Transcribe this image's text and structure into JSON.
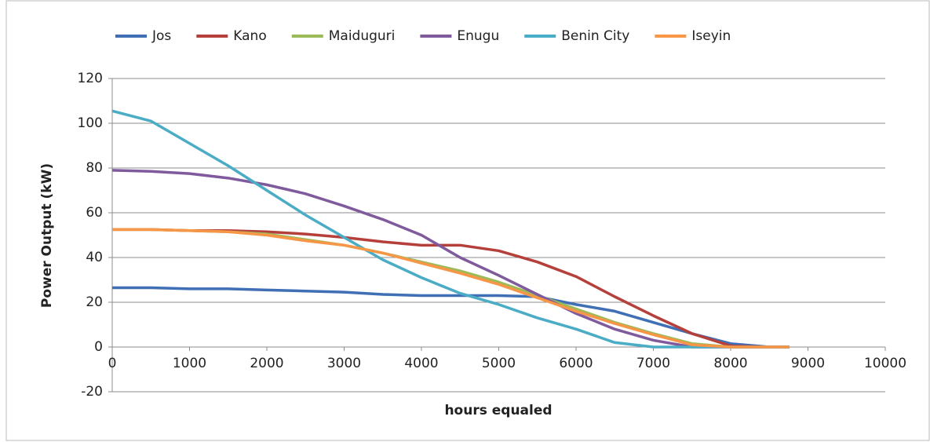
{
  "chart_data": {
    "type": "line",
    "x_label": "hours equaled",
    "y_label": "Power Output (kW)",
    "xlim": [
      0,
      10000
    ],
    "xticks": [
      0,
      1000,
      2000,
      3000,
      4000,
      5000,
      6000,
      7000,
      8000,
      9000,
      10000
    ],
    "ylim": [
      -20,
      120
    ],
    "yticks": [
      -20,
      0,
      20,
      40,
      60,
      80,
      100,
      120
    ],
    "grid": true,
    "legend": "top",
    "x": [
      0,
      500,
      1000,
      1500,
      2000,
      2500,
      3000,
      3500,
      4000,
      4500,
      5000,
      5500,
      6000,
      6500,
      7000,
      7500,
      8000,
      8500,
      8760
    ],
    "series": [
      {
        "name": "Jos",
        "color": "#3f6fb5",
        "values": [
          26.5,
          26.5,
          26,
          26,
          25.5,
          25,
          24.5,
          23.5,
          23,
          23,
          23,
          22.5,
          19,
          16,
          11,
          6,
          1.5,
          0,
          0
        ]
      },
      {
        "name": "Kano",
        "color": "#b5403b",
        "values": [
          52.5,
          52.5,
          52,
          52,
          51.5,
          50.5,
          49,
          47,
          45.5,
          45.5,
          43,
          38,
          31.5,
          22.5,
          14,
          6,
          0.5,
          0,
          0
        ]
      },
      {
        "name": "Maiduguri",
        "color": "#9bbb59",
        "values": [
          52.5,
          52.5,
          52,
          51.5,
          50.5,
          48,
          45.5,
          42,
          38,
          34,
          29,
          23,
          17,
          11,
          6,
          1.5,
          0,
          0,
          0
        ]
      },
      {
        "name": "Enugu",
        "color": "#7f5a9d",
        "values": [
          79,
          78.5,
          77.5,
          75.5,
          72.5,
          68.5,
          63,
          57,
          50,
          40,
          32,
          23.5,
          15,
          8,
          3,
          0,
          0,
          0,
          0
        ]
      },
      {
        "name": "Benin City",
        "color": "#4bacc6",
        "values": [
          105.5,
          101,
          91,
          81,
          70,
          59,
          49,
          39,
          31,
          24,
          19,
          13,
          8,
          2,
          0,
          0,
          0,
          0,
          0
        ]
      },
      {
        "name": "Iseyin",
        "color": "#f79646",
        "values": [
          52.5,
          52.5,
          52,
          51.5,
          50,
          47.5,
          45.5,
          42,
          37.5,
          33,
          28,
          22,
          16,
          10.5,
          5.5,
          1,
          0,
          0,
          0
        ]
      }
    ]
  }
}
